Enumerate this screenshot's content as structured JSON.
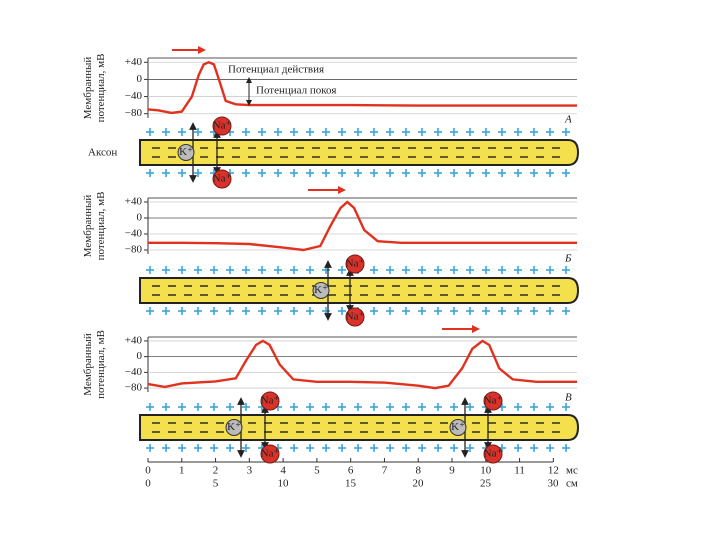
{
  "ions": {
    "sodium": "Na⁺",
    "potassium": "K⁺"
  },
  "chart_data": [
    {
      "type": "line",
      "panel_label": "А",
      "y_label": [
        "Мембранный",
        "потенциал, мВ"
      ],
      "annotations": [
        "Потенциал действия",
        "Потенциал покоя",
        "Аксон"
      ],
      "x": [
        0,
        0.3,
        0.7,
        1.0,
        1.3,
        1.5,
        1.65,
        1.8,
        1.95,
        2.1,
        2.3,
        2.6,
        3,
        4,
        6,
        8,
        10,
        12.7
      ],
      "series": [
        {
          "color": "#e0321e",
          "values": [
            -70,
            -72,
            -78,
            -75,
            -40,
            10,
            35,
            40,
            35,
            0,
            -50,
            -58,
            -60,
            -60,
            -60,
            -61,
            -61,
            -61
          ]
        }
      ],
      "xlim": [
        0,
        12.7
      ],
      "ylim": [
        -90,
        50
      ],
      "yticks": [
        {
          "value": 40,
          "label": "+40"
        },
        0,
        {
          "value": -40,
          "label": "−40"
        },
        {
          "value": -80,
          "label": "−80"
        }
      ]
    },
    {
      "type": "line",
      "panel_label": "Б",
      "y_label": [
        "Мембранный",
        "потенциал, мВ"
      ],
      "x": [
        0,
        1,
        2,
        3,
        4,
        4.6,
        5.1,
        5.4,
        5.7,
        5.9,
        6.1,
        6.4,
        6.8,
        7.5,
        9,
        12.7
      ],
      "series": [
        {
          "color": "#e0321e",
          "values": [
            -62,
            -62,
            -63,
            -65,
            -74,
            -80,
            -70,
            -20,
            25,
            40,
            25,
            -30,
            -58,
            -62,
            -62,
            -62
          ]
        }
      ],
      "xlim": [
        0,
        12.7
      ],
      "ylim": [
        -90,
        50
      ],
      "yticks": [
        {
          "value": 40,
          "label": "+40"
        },
        0,
        {
          "value": -40,
          "label": "−40"
        },
        {
          "value": -80,
          "label": "−80"
        }
      ]
    },
    {
      "type": "line",
      "panel_label": "В",
      "y_label": [
        "Мембранный",
        "потенциал, мВ"
      ],
      "x": [
        0,
        0.5,
        1,
        2,
        2.6,
        2.9,
        3.2,
        3.4,
        3.6,
        3.9,
        4.3,
        5,
        6,
        7,
        8,
        8.5,
        8.9,
        9.3,
        9.6,
        9.9,
        10.1,
        10.4,
        10.8,
        11.5,
        12.7
      ],
      "series": [
        {
          "color": "#e0321e",
          "values": [
            -70,
            -77,
            -68,
            -63,
            -55,
            -10,
            30,
            40,
            30,
            -20,
            -58,
            -64,
            -64,
            -66,
            -74,
            -80,
            -74,
            -30,
            20,
            40,
            30,
            -30,
            -58,
            -64,
            -64
          ]
        }
      ],
      "xlim": [
        0,
        12.7
      ],
      "ylim": [
        -90,
        50
      ],
      "yticks": [
        {
          "value": 40,
          "label": "+40"
        },
        0,
        {
          "value": -40,
          "label": "−40"
        },
        {
          "value": -80,
          "label": "−80"
        }
      ],
      "x_label": "мс",
      "xticks": [
        0,
        1,
        2,
        3,
        4,
        5,
        6,
        7,
        8,
        9,
        10,
        11,
        12
      ],
      "x2_label": "см",
      "x2lim": [
        0,
        30
      ],
      "x2ticks": [
        0,
        5,
        10,
        15,
        20,
        25,
        30
      ]
    }
  ]
}
